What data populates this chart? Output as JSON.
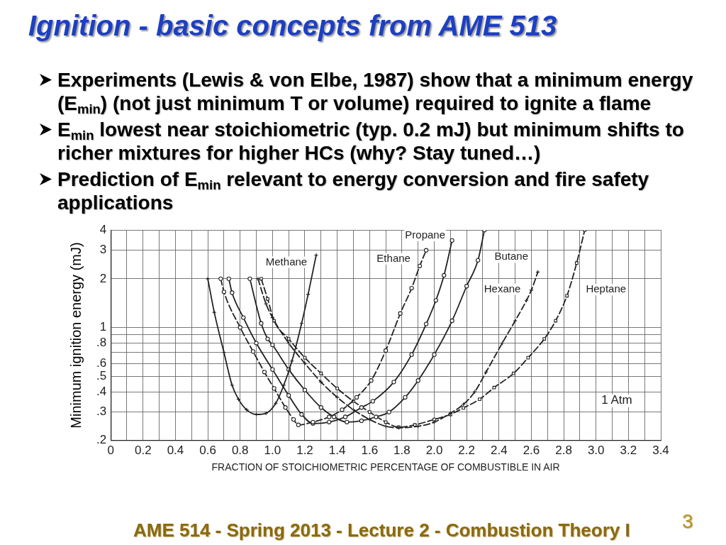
{
  "chart_data": {
    "type": "line",
    "title": "Ignition - basic concepts from AME 513",
    "xlabel": "FRACTION OF STOICHIOMETRIC PERCENTAGE OF COMBUSTIBLE IN AIR",
    "ylabel": "Minimum ignition energy (mJ)",
    "annotations": [
      "Experiments (Lewis & von Elbe, 1987) show that a minimum energy (E$_{min}$) (not just minimum T or volume) required to ignite a flame",
      "E$_{min}$ lowest near stoichiometric (typ. 0.2 mJ) but minimum shifts to richer mixtures for higher HCs (why? Stay tuned…)",
      "Prediction of E$_{min}$ relevant to energy conversion and fire safety applications",
      "1 Atm",
      "AME 514 - Spring 2013 - Lecture 2 - Combustion Theory I",
      "3"
    ],
    "log": true,
    "grid": true,
    "xlim": [
      0,
      3.4
    ],
    "xticks": [
      0,
      {
        "value": 0.1,
        "label": null
      },
      0.2,
      {
        "value": 0.3,
        "label": null
      },
      0.4,
      {
        "value": 0.5,
        "label": null
      },
      0.6,
      {
        "value": 0.7,
        "label": null
      },
      0.8,
      {
        "value": 0.9,
        "label": null
      },
      {
        "value": 1,
        "label": "1.0"
      },
      {
        "value": 1.1,
        "label": null
      },
      1.2,
      {
        "value": 1.3,
        "label": null
      },
      1.4,
      {
        "value": 1.5,
        "label": null
      },
      1.6,
      {
        "value": 1.7,
        "label": null
      },
      1.8,
      {
        "value": 1.9,
        "label": null
      },
      {
        "value": 2,
        "label": "2.0"
      },
      {
        "value": 2.1,
        "label": null
      },
      2.2,
      {
        "value": 2.3,
        "label": null
      },
      2.4,
      {
        "value": 2.5,
        "label": null
      },
      2.6,
      {
        "value": 2.7,
        "label": null
      },
      2.8,
      {
        "value": 2.9,
        "label": null
      },
      {
        "value": 3,
        "label": "3.0"
      },
      {
        "value": 3.1,
        "label": null
      },
      3.2,
      {
        "value": 3.3,
        "label": null
      },
      3.4
    ],
    "ylim": [
      0.2,
      4
    ],
    "yticks": [
      {
        "value": 0.2,
        "label": ".2"
      },
      {
        "value": 0.3,
        "label": ".3"
      },
      {
        "value": 0.4,
        "label": ".4"
      },
      {
        "value": 0.5,
        "label": ".5"
      },
      {
        "value": 0.6,
        "label": ".6"
      },
      {
        "value": 0.7,
        "label": null
      },
      {
        "value": 0.8,
        "label": ".8"
      },
      {
        "value": 0.9,
        "label": null
      },
      1,
      2,
      3,
      4
    ],
    "series": [
      {
        "name": "Methane",
        "color": "#222222",
        "marker": "cross",
        "line_style": "solid",
        "x": [
          0.6,
          0.64,
          0.7,
          0.75,
          0.79,
          0.84,
          0.9,
          0.96,
          1.02,
          1.07,
          1.12,
          1.18,
          1.22,
          1.27
        ],
        "values": [
          2.0,
          1.24,
          0.7,
          0.44,
          0.36,
          0.31,
          0.29,
          0.295,
          0.34,
          0.44,
          0.62,
          1.06,
          1.6,
          2.8
        ]
      },
      {
        "name": "Ethane",
        "color": "#222222",
        "marker": "circle",
        "line_style": "dashed",
        "x": [
          0.68,
          0.7,
          0.8,
          0.88,
          0.95,
          1.01,
          1.08,
          1.13,
          1.16,
          1.25,
          1.35,
          1.43,
          1.52,
          1.61,
          1.7,
          1.79,
          1.86,
          1.91,
          1.95
        ],
        "values": [
          2.0,
          1.66,
          1.0,
          0.71,
          0.53,
          0.42,
          0.32,
          0.27,
          0.25,
          0.26,
          0.28,
          0.31,
          0.37,
          0.47,
          0.72,
          1.22,
          1.75,
          2.4,
          3.0
        ]
      },
      {
        "name": "Propane",
        "color": "#222222",
        "marker": "circle",
        "line_style": "solid",
        "x": [
          0.73,
          0.75,
          0.82,
          0.9,
          1.0,
          1.1,
          1.18,
          1.25,
          1.35,
          1.45,
          1.55,
          1.62,
          1.75,
          1.86,
          1.95,
          2.01,
          2.06,
          2.11
        ],
        "values": [
          2.0,
          1.64,
          1.15,
          0.8,
          0.55,
          0.38,
          0.29,
          0.255,
          0.26,
          0.28,
          0.32,
          0.35,
          0.46,
          0.68,
          1.05,
          1.47,
          2.1,
          3.45
        ]
      },
      {
        "name": "Butane",
        "color": "#222222",
        "marker": "circle",
        "line_style": "solid",
        "x": [
          0.86,
          0.93,
          0.97,
          1.0,
          1.1,
          1.2,
          1.3,
          1.38,
          1.46,
          1.55,
          1.64,
          1.72,
          1.82,
          1.9,
          2.0,
          2.11,
          2.2,
          2.27,
          2.31
        ],
        "values": [
          2.0,
          1.06,
          0.85,
          0.78,
          0.55,
          0.41,
          0.32,
          0.28,
          0.26,
          0.265,
          0.28,
          0.3,
          0.37,
          0.47,
          0.68,
          1.1,
          1.8,
          2.6,
          4.0
        ]
      },
      {
        "name": "Hexane",
        "color": "#222222",
        "marker": "cross",
        "line_style": "dashed",
        "x": [
          0.91,
          0.96,
          1.0,
          1.1,
          1.2,
          1.3,
          1.4,
          1.5,
          1.6,
          1.7,
          1.78,
          1.9,
          2.0,
          2.1,
          2.18,
          2.25,
          2.32,
          2.42,
          2.5,
          2.57,
          2.6,
          2.64
        ],
        "values": [
          2.0,
          1.4,
          1.15,
          0.8,
          0.6,
          0.46,
          0.37,
          0.31,
          0.27,
          0.245,
          0.24,
          0.245,
          0.26,
          0.295,
          0.335,
          0.4,
          0.53,
          0.8,
          1.1,
          1.47,
          1.7,
          2.2
        ]
      },
      {
        "name": "Heptane",
        "color": "#222222",
        "marker": "square",
        "line_style": "dashed",
        "x": [
          0.93,
          0.97,
          1.01,
          1.1,
          1.2,
          1.3,
          1.4,
          1.5,
          1.6,
          1.7,
          1.78,
          1.88,
          2.0,
          2.1,
          2.18,
          2.28,
          2.37,
          2.49,
          2.58,
          2.68,
          2.75,
          2.82,
          2.88,
          2.93
        ],
        "values": [
          2.0,
          1.5,
          1.1,
          0.85,
          0.65,
          0.52,
          0.42,
          0.35,
          0.3,
          0.26,
          0.242,
          0.25,
          0.27,
          0.29,
          0.318,
          0.36,
          0.425,
          0.52,
          0.65,
          0.85,
          1.1,
          1.57,
          2.5,
          4.0
        ]
      }
    ]
  }
}
